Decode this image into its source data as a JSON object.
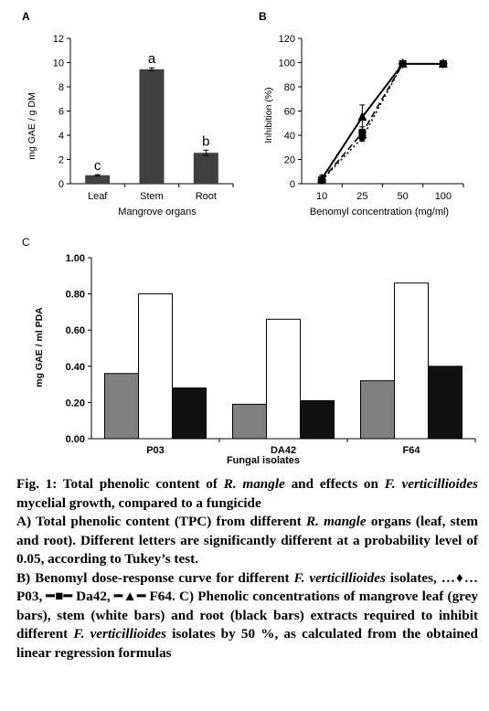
{
  "chart_data": [
    {
      "panel": "A",
      "type": "bar",
      "ylabel": "mg GAE / g DM",
      "xlabel": "Mangrove organs",
      "ylim": [
        0,
        12
      ],
      "yticks": [
        "0",
        "2",
        "4",
        "6",
        "8",
        "10",
        "12"
      ],
      "categories": [
        "Leaf",
        "Stem",
        "Root"
      ],
      "values": [
        0.7,
        9.45,
        2.55
      ],
      "errors": [
        0.05,
        0.12,
        0.22
      ],
      "letters": [
        "c",
        "a",
        "b"
      ],
      "color": "#404040"
    },
    {
      "panel": "B",
      "type": "line",
      "ylabel": "Inhibition (%)",
      "xlabel": "Benomyl concentration (mg/ml)",
      "ylim": [
        0,
        120
      ],
      "yticks": [
        "0",
        "20",
        "40",
        "60",
        "80",
        "100",
        "120"
      ],
      "categories": [
        "10",
        "25",
        "50",
        "100"
      ],
      "series": [
        {
          "values": [
            3,
            38,
            99,
            99
          ],
          "errors": [
            2,
            3,
            1,
            1
          ],
          "marker": "diamond",
          "dash": "2,3"
        },
        {
          "values": [
            3,
            42,
            99,
            99
          ],
          "errors": [
            2,
            5,
            1,
            1
          ],
          "marker": "square",
          "dash": "7,4"
        },
        {
          "values": [
            4,
            55,
            99,
            99
          ],
          "errors": [
            3,
            10,
            1,
            1
          ],
          "marker": "triangle",
          "dash": ""
        }
      ]
    },
    {
      "panel": "C",
      "type": "bar",
      "ylabel": "mg GAE / ml PDA",
      "xlabel": "Fungal isolates",
      "ylim": [
        0,
        1
      ],
      "yticks": [
        "0.00",
        "0.20",
        "0.40",
        "0.60",
        "0.80",
        "1.00"
      ],
      "categories": [
        "P03",
        "DA42",
        "F64"
      ],
      "series": [
        {
          "values": [
            0.36,
            0.19,
            0.32
          ],
          "color": "#808080"
        },
        {
          "values": [
            0.8,
            0.66,
            0.86
          ],
          "color": "#ffffff"
        },
        {
          "values": [
            0.28,
            0.21,
            0.4
          ],
          "color": "#111111"
        }
      ]
    }
  ],
  "figure": {
    "label_a": "A",
    "label_b": "B",
    "label_c": "C"
  },
  "caption": {
    "title_1": "Fig. 1: Total phenolic content of ",
    "title_2": "R. mangle",
    "title_3": " and effects on ",
    "title_4": "F. verticillioides",
    "title_5": " mycelial growth, compared to a fungicide",
    "a_1": "A) Total phenolic content (TPC) from different ",
    "a_2": "R. mangle",
    "a_3": " organs (leaf, stem and root). Different letters are significantly different at a probability level of 0.05, according to Tukey’s test.",
    "b_1": "B) Benomyl dose-response curve for different ",
    "b_2": "F. verticillioides",
    "b_3": " isolates, …♦… P03, ━■━ Da42, ━▲━ F64. C) Phenolic concentrations of mangrove leaf (grey bars), stem (white bars) and root (black bars) extracts required to inhibit different ",
    "b_4": "F. verticillioides",
    "b_5": " isolates by 50 %, as calculated from the obtained linear regression formulas"
  }
}
